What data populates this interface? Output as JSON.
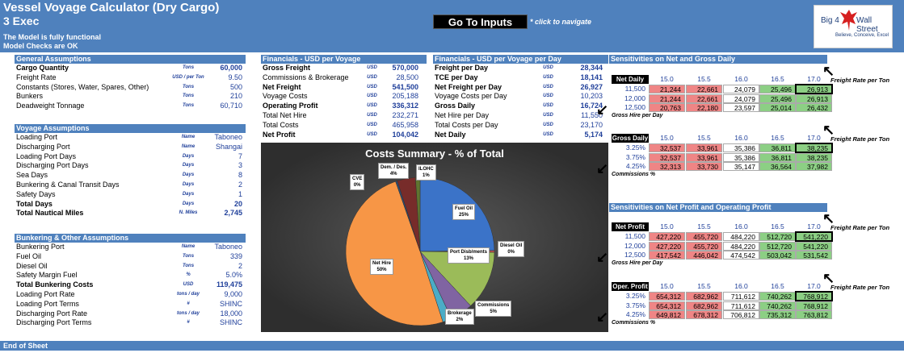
{
  "header": {
    "title": "Vessel Voyage Calculator (Dry Cargo)",
    "sheet": "3 Exec",
    "functional": "The Model is fully functional",
    "checks": "Model Checks are OK",
    "goto_label": "Go To Inputs",
    "nav_hint": "* click to navigate",
    "logo_left": "Big 4",
    "logo_right": "Wall Street",
    "logo_tagline": "Believe, Conceive, Excel"
  },
  "general": {
    "title": "General Assumptions",
    "rows": [
      {
        "label": "Cargo Quantity",
        "unit": "Tons",
        "value": "60,000"
      },
      {
        "label": "Freight Rate",
        "unit": "USD / per Ton",
        "value": "9.50"
      },
      {
        "label": "Constants (Stores, Water, Spares, Other)",
        "unit": "Tons",
        "value": "500"
      },
      {
        "label": "Bunkers",
        "unit": "Tons",
        "value": "210"
      },
      {
        "label": "Deadweight Tonnage",
        "unit": "Tons",
        "value": "60,710"
      }
    ]
  },
  "voyage": {
    "title": "Voyage Assumptions",
    "rows": [
      {
        "label": "Loading Port",
        "unit": "Name",
        "value": "Taboneo"
      },
      {
        "label": "Discharging Port",
        "unit": "Name",
        "value": "Shangai"
      },
      {
        "label": "Loading Port Days",
        "unit": "Days",
        "value": "7"
      },
      {
        "label": "Discharging Port Days",
        "unit": "Days",
        "value": "3"
      },
      {
        "label": "Sea Days",
        "unit": "Days",
        "value": "8"
      },
      {
        "label": "Bunkering & Canal Transit Days",
        "unit": "Days",
        "value": "2"
      },
      {
        "label": "Safety Days",
        "unit": "Days",
        "value": "1"
      },
      {
        "label": "Total Days",
        "unit": "Days",
        "value": "20"
      },
      {
        "label": "Total Nautical Miles",
        "unit": "N. Miles",
        "value": "2,745"
      }
    ]
  },
  "bunkering": {
    "title": "Bunkering & Other Assumptions",
    "rows": [
      {
        "label": "Bunkering Port",
        "unit": "Name",
        "value": "Taboneo"
      },
      {
        "label": "Fuel Oil",
        "unit": "Tons",
        "value": "339"
      },
      {
        "label": "Diesel Oil",
        "unit": "Tons",
        "value": "2"
      },
      {
        "label": "Safety Margin Fuel",
        "unit": "%",
        "value": "5.0%"
      },
      {
        "label": "Total Bunkering Costs",
        "unit": "USD",
        "value": "119,475"
      },
      {
        "label": "Loading Port Rate",
        "unit": "tons / day",
        "value": "9,000"
      },
      {
        "label": "Loading Port Terms",
        "unit": "#",
        "value": "SHINC"
      },
      {
        "label": "Discharging Port Rate",
        "unit": "tons / day",
        "value": "18,000"
      },
      {
        "label": "Discharging Port Terms",
        "unit": "#",
        "value": "SHINC"
      }
    ]
  },
  "fin_voyage": {
    "title": "Financials - USD per Voyage",
    "rows": [
      {
        "label": "Gross Freight",
        "unit": "USD",
        "value": "570,000"
      },
      {
        "label": "Commissions & Brokerage",
        "unit": "USD",
        "value": "28,500"
      },
      {
        "label": "Net Freight",
        "unit": "USD",
        "value": "541,500"
      },
      {
        "label": "Voyage Costs",
        "unit": "USD",
        "value": "205,188"
      },
      {
        "label": "Operating Profit",
        "unit": "USD",
        "value": "336,312"
      },
      {
        "label": "Total Net Hire",
        "unit": "USD",
        "value": "232,271"
      },
      {
        "label": "Total Costs",
        "unit": "USD",
        "value": "465,958"
      },
      {
        "label": "Net Profit",
        "unit": "USD",
        "value": "104,042"
      }
    ]
  },
  "fin_day": {
    "title": "Financials - USD per Voyage per Day",
    "rows": [
      {
        "label": "Freight per Day",
        "unit": "USD",
        "value": "28,344"
      },
      {
        "label": "TCE per Day",
        "unit": "USD",
        "value": "18,141"
      },
      {
        "label": "Net Freight per Day",
        "unit": "USD",
        "value": "26,927"
      },
      {
        "label": "Voyage Costs per Day",
        "unit": "USD",
        "value": "10,203"
      },
      {
        "label": "Gross Daily",
        "unit": "USD",
        "value": "16,724"
      },
      {
        "label": "Net Hire per Day",
        "unit": "USD",
        "value": "11,550"
      },
      {
        "label": "Total Costs per Day",
        "unit": "USD",
        "value": "23,170"
      },
      {
        "label": "Net Daily",
        "unit": "USD",
        "value": "5,174"
      }
    ]
  },
  "chart_data": {
    "type": "pie",
    "title": "Costs Summary - % of Total",
    "slices": [
      {
        "label": "Fuel Oil",
        "pct": "25%",
        "value": 25,
        "color": "#3b73c8"
      },
      {
        "label": "Diesel Oil",
        "pct": "0%",
        "value": 0.4,
        "color": "#c0504d"
      },
      {
        "label": "Port Disb/ments",
        "pct": "13%",
        "value": 13,
        "color": "#9bbb59"
      },
      {
        "label": "Commissions",
        "pct": "5%",
        "value": 5,
        "color": "#8064a2"
      },
      {
        "label": "Brokerage",
        "pct": "2%",
        "value": 2,
        "color": "#4bacc6"
      },
      {
        "label": "Net Hire",
        "pct": "50%",
        "value": 50,
        "color": "#f79646"
      },
      {
        "label": "CVE",
        "pct": "0%",
        "value": 0.4,
        "color": "#2c4d75"
      },
      {
        "label": "Dem. / Des.",
        "pct": "4%",
        "value": 4,
        "color": "#772c2a"
      },
      {
        "label": "ILOHC",
        "pct": "1%",
        "value": 1,
        "color": "#5f7530"
      }
    ]
  },
  "sens1": {
    "title": "Sensitivities on Net and Gross Daily",
    "x_axis": "Freight Rate per Ton",
    "cols": [
      "15.0",
      "15.5",
      "16.0",
      "16.5",
      "17.0"
    ],
    "tables": [
      {
        "corner": "Net Daily",
        "y_axis": "Gross Hire per Day",
        "rows": [
          {
            "h": "11,500",
            "v": [
              "21,244",
              "22,661",
              "24,079",
              "25,496",
              "26,913"
            ]
          },
          {
            "h": "12,000",
            "v": [
              "21,244",
              "22,661",
              "24,079",
              "25,496",
              "26,913"
            ]
          },
          {
            "h": "12,500",
            "v": [
              "20,763",
              "22,180",
              "23,597",
              "25,014",
              "26,432"
            ]
          }
        ]
      },
      {
        "corner": "Gross Daily",
        "y_axis": "Commissions %",
        "rows": [
          {
            "h": "3.25%",
            "v": [
              "32,537",
              "33,961",
              "35,386",
              "36,811",
              "38,235"
            ]
          },
          {
            "h": "3.75%",
            "v": [
              "32,537",
              "33,961",
              "35,386",
              "36,811",
              "38,235"
            ]
          },
          {
            "h": "4.25%",
            "v": [
              "32,313",
              "33,730",
              "35,147",
              "36,564",
              "37,982"
            ]
          }
        ]
      }
    ]
  },
  "sens2": {
    "title": "Sensitivities on Net Profit and Operating Profit",
    "x_axis": "Freight Rate per Ton",
    "cols": [
      "15.0",
      "15.5",
      "16.0",
      "16.5",
      "17.0"
    ],
    "tables": [
      {
        "corner": "Net Profit",
        "y_axis": "Gross Hire per Day",
        "rows": [
          {
            "h": "11,500",
            "v": [
              "427,220",
              "455,720",
              "484,220",
              "512,720",
              "541,220"
            ]
          },
          {
            "h": "12,000",
            "v": [
              "427,220",
              "455,720",
              "484,220",
              "512,720",
              "541,220"
            ]
          },
          {
            "h": "12,500",
            "v": [
              "417,542",
              "446,042",
              "474,542",
              "503,042",
              "531,542"
            ]
          }
        ]
      },
      {
        "corner": "Oper. Profit",
        "y_axis": "Commissions %",
        "rows": [
          {
            "h": "3.25%",
            "v": [
              "654,312",
              "682,962",
              "711,612",
              "740,262",
              "768,912"
            ]
          },
          {
            "h": "3.75%",
            "v": [
              "654,312",
              "682,962",
              "711,612",
              "740,262",
              "768,912"
            ]
          },
          {
            "h": "4.25%",
            "v": [
              "649,812",
              "678,312",
              "706,812",
              "735,312",
              "763,812"
            ]
          }
        ]
      }
    ]
  },
  "footer": "End of Sheet"
}
